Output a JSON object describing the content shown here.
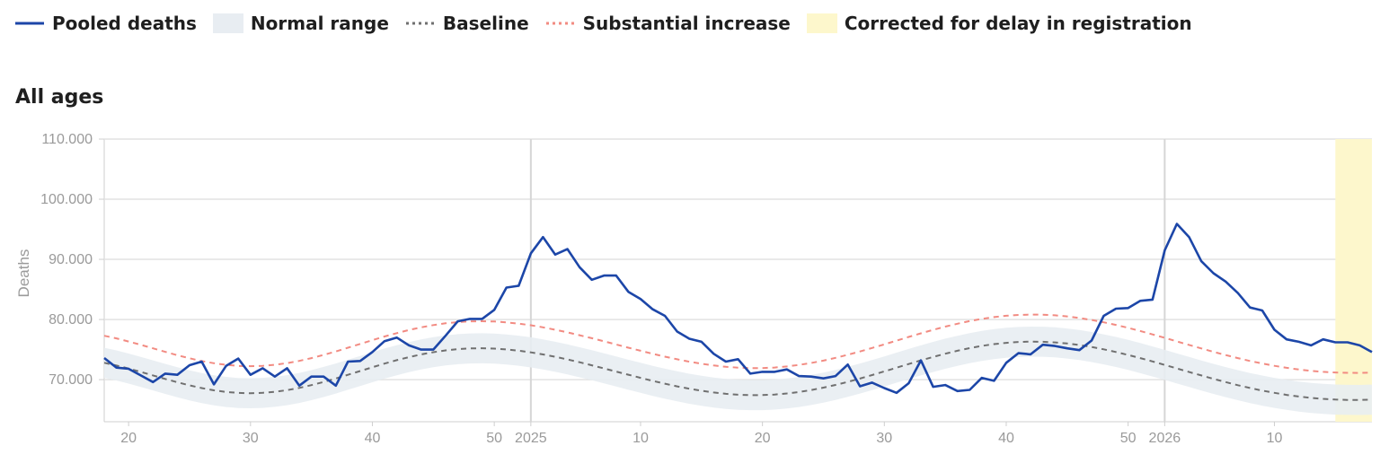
{
  "legend": {
    "items": [
      {
        "key": "pooled",
        "label": "Pooled deaths",
        "kind": "solid-line",
        "color": "#1c46a8"
      },
      {
        "key": "normal",
        "label": "Normal range",
        "kind": "box",
        "color": "#e8edf2"
      },
      {
        "key": "baseline",
        "label": "Baseline",
        "kind": "dotted-line",
        "color": "#707070"
      },
      {
        "key": "substantial",
        "label": "Substantial increase",
        "kind": "dotted-line",
        "color": "#f28b82"
      },
      {
        "key": "corrected",
        "label": "Corrected for delay in registration",
        "kind": "box",
        "color": "#fdf7cc"
      }
    ]
  },
  "chart_data": {
    "type": "line",
    "title": "All ages",
    "ylabel": "Deaths",
    "xlabel": "",
    "ylim": [
      63000,
      110000
    ],
    "y_ticks": [
      {
        "value": 70000,
        "label": "70.000"
      },
      {
        "value": 80000,
        "label": "80.000"
      },
      {
        "value": 90000,
        "label": "90.000"
      },
      {
        "value": 100000,
        "label": "100.000"
      },
      {
        "value": 110000,
        "label": "110.000"
      }
    ],
    "x_range": [
      0,
      104
    ],
    "x_ticks": [
      {
        "x": 2,
        "label": "20"
      },
      {
        "x": 12,
        "label": "30"
      },
      {
        "x": 22,
        "label": "40"
      },
      {
        "x": 32,
        "label": "50"
      },
      {
        "x": 35,
        "label": "2025",
        "divider": true
      },
      {
        "x": 44,
        "label": "10"
      },
      {
        "x": 54,
        "label": "20"
      },
      {
        "x": 64,
        "label": "30"
      },
      {
        "x": 74,
        "label": "40"
      },
      {
        "x": 84,
        "label": "50"
      },
      {
        "x": 87,
        "label": "2026",
        "divider": true
      },
      {
        "x": 96,
        "label": "10"
      }
    ],
    "grid": true,
    "corrected_from_x": 101,
    "colors": {
      "pooled": "#1c46a8",
      "normal_range": "#e8edf2",
      "baseline": "#707070",
      "substantial": "#f28b82",
      "corrected": "#fdf7cc",
      "grid": "#e2e2e2",
      "divider": "#d6d6d6"
    },
    "series": [
      {
        "name": "Pooled deaths",
        "values": [
          73600,
          72000,
          71800,
          70700,
          69600,
          71000,
          70800,
          72400,
          73000,
          69200,
          72300,
          73500,
          70800,
          71900,
          70500,
          71900,
          69000,
          70500,
          70500,
          69000,
          73000,
          73100,
          74600,
          76400,
          77000,
          75700,
          75000,
          75000,
          77300,
          79700,
          80100,
          80100,
          81600,
          85300,
          85600,
          91000,
          93700,
          90800,
          91700,
          88700,
          86600,
          87300,
          87300,
          84600,
          83400,
          81700,
          80600,
          78000,
          76800,
          76300,
          74300,
          73000,
          73400,
          71000,
          71300,
          71300,
          71700,
          70600,
          70500,
          70200,
          70600,
          72500,
          68900,
          69500,
          68600,
          67800,
          69400,
          73200,
          68800,
          69100,
          68100,
          68300,
          70300,
          69800,
          72800,
          74400,
          74200,
          75800,
          75600,
          75200,
          74900,
          76500,
          80600,
          81800,
          81900,
          83100,
          83300,
          91500,
          95900,
          93700,
          89700,
          87700,
          86300,
          84400,
          82000,
          81500,
          78300,
          76700,
          76300,
          75700,
          76700,
          76200,
          76200,
          75700,
          74600
        ]
      },
      {
        "name": "Baseline",
        "values": [
          72796,
          72355,
          71845,
          71288,
          70705,
          70121,
          69560,
          69044,
          68593,
          68225,
          67953,
          67788,
          67735,
          67797,
          67970,
          68248,
          68623,
          69082,
          69610,
          70190,
          70805,
          71436,
          72063,
          72668,
          73234,
          73747,
          74195,
          74569,
          74861,
          75067,
          75185,
          75215,
          75160,
          75024,
          74813,
          74533,
          74193,
          73799,
          73361,
          72888,
          72388,
          71870,
          71343,
          70815,
          70297,
          69796,
          69322,
          68882,
          68487,
          68143,
          67858,
          67638,
          67490,
          67419,
          67428,
          67519,
          67693,
          67945,
          68270,
          68664,
          69119,
          69627,
          70178,
          70763,
          71369,
          71985,
          72599,
          73199,
          73773,
          74310,
          74800,
          75234,
          75603,
          75901,
          76122,
          76263,
          76322,
          76298,
          76193,
          76010,
          75752,
          75426,
          75038,
          74595,
          74106,
          73579,
          73022,
          72446,
          71860,
          71272,
          70692,
          70128,
          69588,
          69079,
          68607,
          68178,
          67797,
          67467,
          67189,
          66967,
          66799,
          66686,
          66627,
          66622,
          66670
        ]
      },
      {
        "name": "Normal range upper",
        "values": [
          75296,
          74855,
          74345,
          73788,
          73205,
          72621,
          72060,
          71544,
          71093,
          70725,
          70453,
          70288,
          70235,
          70297,
          70470,
          70748,
          71123,
          71582,
          72110,
          72690,
          73305,
          73936,
          74563,
          75168,
          75734,
          76247,
          76695,
          77069,
          77361,
          77567,
          77685,
          77715,
          77660,
          77524,
          77313,
          77033,
          76693,
          76299,
          75861,
          75388,
          74888,
          74370,
          73843,
          73315,
          72797,
          72296,
          71822,
          71382,
          70987,
          70643,
          70358,
          70138,
          69990,
          69919,
          69928,
          70019,
          70193,
          70445,
          70770,
          71164,
          71619,
          72127,
          72678,
          73263,
          73869,
          74485,
          75099,
          75699,
          76273,
          76810,
          77300,
          77734,
          78103,
          78401,
          78622,
          78763,
          78822,
          78798,
          78693,
          78510,
          78252,
          77926,
          77538,
          77095,
          76606,
          76079,
          75522,
          74946,
          74360,
          73772,
          73192,
          72628,
          72088,
          71579,
          71107,
          70678,
          70297,
          69967,
          69689,
          69467,
          69299,
          69186,
          69127,
          69122,
          69170
        ]
      },
      {
        "name": "Normal range lower",
        "values": [
          70296,
          69855,
          69345,
          68788,
          68205,
          67621,
          67060,
          66544,
          66093,
          65725,
          65453,
          65288,
          65235,
          65297,
          65470,
          65748,
          66123,
          66582,
          67110,
          67690,
          68305,
          68936,
          69563,
          70168,
          70734,
          71247,
          71695,
          72069,
          72361,
          72567,
          72685,
          72715,
          72660,
          72524,
          72313,
          72033,
          71693,
          71299,
          70861,
          70388,
          69888,
          69370,
          68843,
          68315,
          67797,
          67296,
          66822,
          66382,
          65987,
          65643,
          65358,
          65138,
          64990,
          64919,
          64928,
          65019,
          65193,
          65445,
          65770,
          66164,
          66619,
          67127,
          67678,
          68263,
          68869,
          69485,
          70099,
          70699,
          71273,
          71810,
          72300,
          72734,
          73103,
          73401,
          73622,
          73763,
          73822,
          73798,
          73693,
          73510,
          73252,
          72926,
          72538,
          72095,
          71606,
          71079,
          70522,
          69946,
          69360,
          68772,
          68192,
          67628,
          67088,
          66579,
          66107,
          65678,
          65297,
          64967,
          64689,
          64467,
          64299,
          64186,
          64127,
          64122,
          64170
        ]
      },
      {
        "name": "Substantial increase",
        "values": [
          77296,
          76855,
          76345,
          75788,
          75205,
          74621,
          74060,
          73544,
          73093,
          72725,
          72453,
          72288,
          72235,
          72297,
          72470,
          72748,
          73123,
          73582,
          74110,
          74690,
          75305,
          75936,
          76563,
          77168,
          77734,
          78247,
          78695,
          79069,
          79361,
          79567,
          79685,
          79715,
          79660,
          79524,
          79313,
          79033,
          78693,
          78299,
          77861,
          77388,
          76888,
          76370,
          75843,
          75315,
          74797,
          74296,
          73822,
          73382,
          72987,
          72643,
          72358,
          72138,
          71990,
          71919,
          71928,
          72019,
          72193,
          72445,
          72770,
          73164,
          73619,
          74127,
          74678,
          75263,
          75869,
          76485,
          77099,
          77699,
          78273,
          78810,
          79300,
          79734,
          80103,
          80401,
          80622,
          80763,
          80822,
          80798,
          80693,
          80510,
          80252,
          79926,
          79538,
          79095,
          78606,
          78079,
          77522,
          76946,
          76360,
          75772,
          75192,
          74628,
          74088,
          73579,
          73107,
          72678,
          72297,
          71967,
          71689,
          71467,
          71299,
          71186,
          71127,
          71122,
          71170
        ]
      }
    ]
  }
}
